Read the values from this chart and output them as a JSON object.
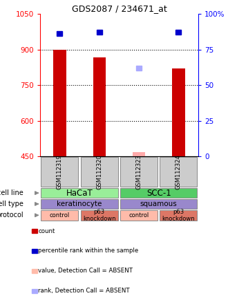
{
  "title": "GDS2087 / 234671_at",
  "samples": [
    "GSM112319",
    "GSM112320",
    "GSM112323",
    "GSM112324"
  ],
  "bar_values": [
    900,
    868,
    null,
    820
  ],
  "bar_color": "#cc0000",
  "absent_bar_values": [
    null,
    null,
    470,
    null
  ],
  "absent_bar_color": "#ffaaaa",
  "rank_values": [
    86,
    87,
    null,
    87
  ],
  "rank_absent_values": [
    null,
    null,
    62,
    null
  ],
  "rank_color": "#0000cc",
  "rank_absent_color": "#aaaaff",
  "ylim_left": [
    450,
    1050
  ],
  "ylim_right": [
    0,
    100
  ],
  "yticks_left": [
    450,
    600,
    750,
    900,
    1050
  ],
  "yticks_right": [
    0,
    25,
    50,
    75,
    100
  ],
  "ytick_labels_right": [
    "0",
    "25",
    "50",
    "75",
    "100%"
  ],
  "grid_values": [
    600,
    750,
    900
  ],
  "cell_line_colors": [
    "#99ee99",
    "#55cc66"
  ],
  "cell_type_color": "#9988cc",
  "protocol_color_light": "#ffbbaa",
  "protocol_color_dark": "#dd7766",
  "legend_items": [
    {
      "color": "#cc0000",
      "label": "count"
    },
    {
      "color": "#0000cc",
      "label": "percentile rank within the sample"
    },
    {
      "color": "#ffbbaa",
      "label": "value, Detection Call = ABSENT"
    },
    {
      "color": "#aaaaff",
      "label": "rank, Detection Call = ABSENT"
    }
  ]
}
